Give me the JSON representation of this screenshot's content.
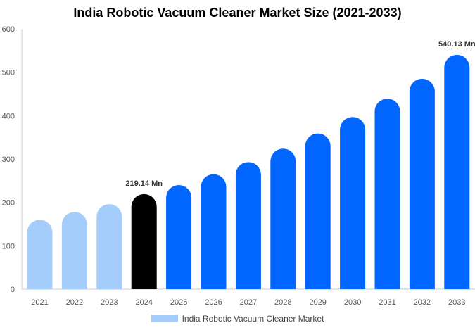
{
  "chart_data": {
    "type": "bar",
    "title": "India Robotic Vacuum Cleaner Market Size (2021-2033)",
    "xlabel": "",
    "ylabel": "",
    "categories": [
      "2021",
      "2022",
      "2023",
      "2024",
      "2025",
      "2026",
      "2027",
      "2028",
      "2029",
      "2030",
      "2031",
      "2032",
      "2033"
    ],
    "series": [
      {
        "name": "India Robotic Vacuum Cleaner Market",
        "values": [
          160,
          178,
          196,
          219.14,
          240,
          265,
          293,
          324,
          359,
          397,
          439,
          485,
          540.13
        ]
      }
    ],
    "ylim": [
      0,
      600
    ],
    "yticks": [
      0,
      100,
      200,
      300,
      400,
      500,
      600
    ],
    "grid": false,
    "legend_position": "bottom",
    "bar_colors": {
      "historical": "#a4cdfc",
      "base_year": "#000000",
      "forecast": "#0066ff"
    },
    "data_labels": [
      {
        "category": "2024",
        "text": "219.14 Mn"
      },
      {
        "category": "2033",
        "text": "540.13 Mn"
      }
    ]
  }
}
